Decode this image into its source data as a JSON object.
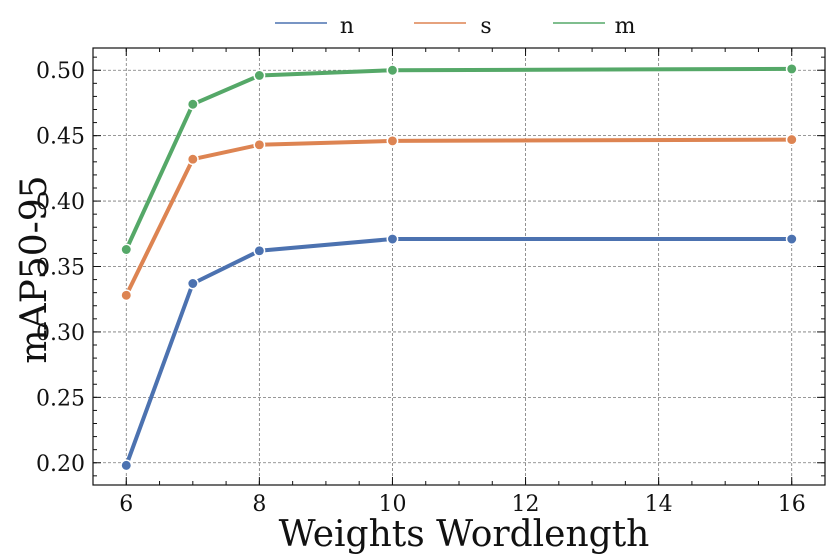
{
  "chart_data": {
    "type": "line",
    "title": "",
    "xlabel": "Weights Wordlength",
    "ylabel": "mAP50-95",
    "x": [
      6,
      7,
      8,
      10,
      16
    ],
    "xlim": [
      5.5,
      16.5
    ],
    "ylim": [
      0.183,
      0.517
    ],
    "xticks": [
      6,
      8,
      10,
      12,
      14,
      16
    ],
    "yticks": [
      0.2,
      0.25,
      0.3,
      0.35,
      0.4,
      0.45,
      0.5
    ],
    "grid": true,
    "legend": "top-center-outside",
    "series": [
      {
        "name": "n",
        "color": "#4c72b0",
        "values": [
          0.198,
          0.337,
          0.362,
          0.371,
          0.371
        ]
      },
      {
        "name": "s",
        "color": "#dd8452",
        "values": [
          0.328,
          0.432,
          0.443,
          0.446,
          0.447
        ]
      },
      {
        "name": "m",
        "color": "#55a868",
        "values": [
          0.363,
          0.474,
          0.496,
          0.5,
          0.501
        ]
      }
    ]
  }
}
